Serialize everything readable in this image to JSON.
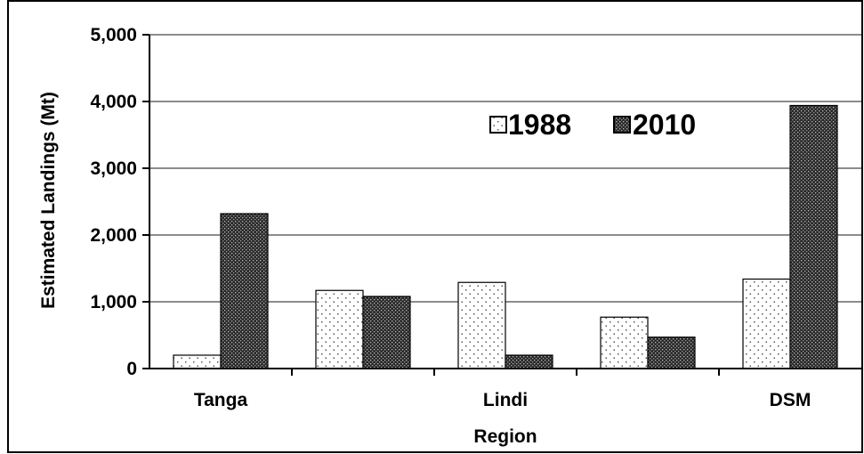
{
  "chart_data": {
    "type": "bar",
    "title": "",
    "xlabel": "Region",
    "ylabel": "Estimated Landings (Mt)",
    "categories": [
      "Tanga",
      "",
      "Lindi",
      "",
      "DSM"
    ],
    "x_tick_labels": [
      "Tanga",
      "Lindi",
      "DSM"
    ],
    "ylim": [
      0,
      5000
    ],
    "y_ticks": [
      "0",
      "1,000",
      "2,000",
      "3,000",
      "4,000",
      "5,000"
    ],
    "grid": "horizontal",
    "legend_placement": "top-center",
    "series": [
      {
        "name": "1988",
        "values": [
          200,
          1170,
          1290,
          770,
          1340
        ],
        "pattern": "dotted-light"
      },
      {
        "name": "2010",
        "values": [
          2320,
          1080,
          200,
          470,
          3940
        ],
        "pattern": "dense-dark"
      }
    ]
  }
}
